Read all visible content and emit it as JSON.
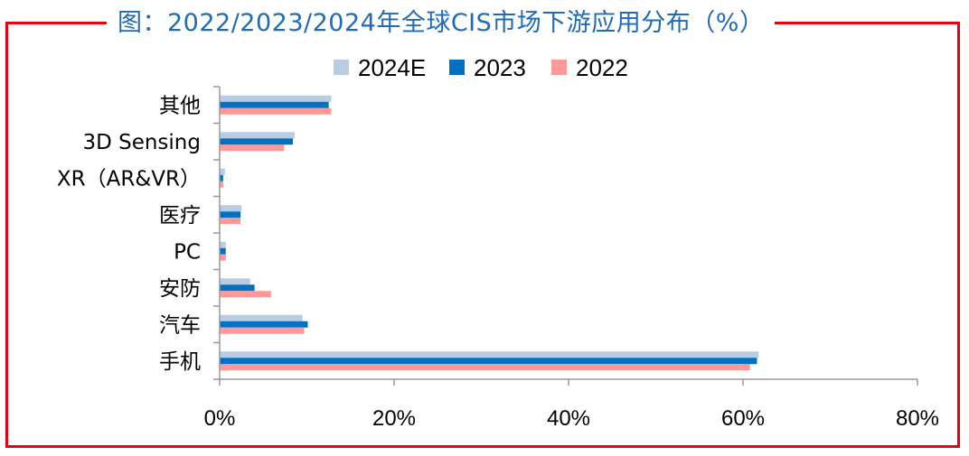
{
  "title": "图：2022/2023/2024年全球CIS市场下游应用分布（%）",
  "colors": {
    "frame": "#e60012",
    "title": "#1f6bb5",
    "s2024E": "#b8cce4",
    "s2023": "#0070c0",
    "s2022": "#ff9999",
    "axis": "#999999"
  },
  "chart_data": {
    "type": "bar",
    "orientation": "horizontal",
    "title": "图：2022/2023/2024年全球CIS市场下游应用分布（%）",
    "categories": [
      "其他",
      "3D Sensing",
      "XR（AR&VR）",
      "医疗",
      "PC",
      "安防",
      "汽车",
      "手机"
    ],
    "series": [
      {
        "name": "2024E",
        "values": [
          12.8,
          8.6,
          0.6,
          2.5,
          0.7,
          3.5,
          9.5,
          61.8
        ]
      },
      {
        "name": "2023",
        "values": [
          12.5,
          8.4,
          0.4,
          2.4,
          0.7,
          4.0,
          10.1,
          61.6
        ]
      },
      {
        "name": "2022",
        "values": [
          12.8,
          7.4,
          0.4,
          2.4,
          0.7,
          5.9,
          9.7,
          60.8
        ]
      }
    ],
    "xlim": [
      0,
      80
    ],
    "xticks": [
      "0%",
      "20%",
      "40%",
      "60%",
      "80%"
    ],
    "legend": "top",
    "grid": false
  }
}
